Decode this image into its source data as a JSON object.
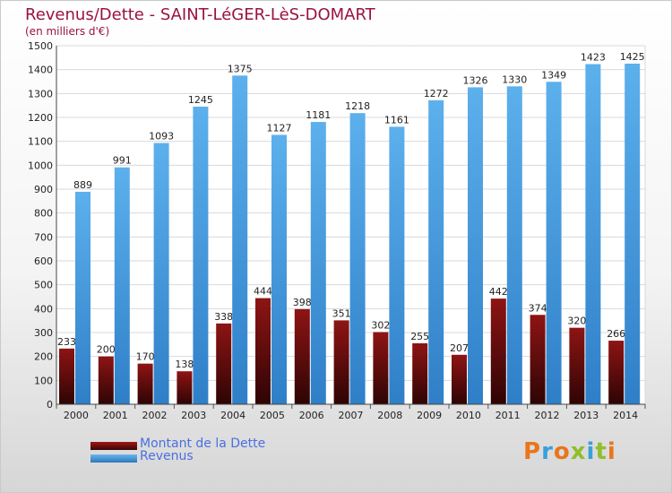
{
  "header": {
    "title": "Revenus/Dette - SAINT-LéGER-LèS-DOMART",
    "subtitle": "(en milliers d'€)"
  },
  "chart_data": {
    "type": "bar",
    "categories": [
      "2000",
      "2001",
      "2002",
      "2003",
      "2004",
      "2005",
      "2006",
      "2007",
      "2008",
      "2009",
      "2010",
      "2011",
      "2012",
      "2013",
      "2014"
    ],
    "series": [
      {
        "name": "Montant de la Dette",
        "color": "#7a1010",
        "values": [
          233,
          200,
          170,
          138,
          338,
          444,
          398,
          351,
          302,
          255,
          207,
          442,
          374,
          320,
          266
        ]
      },
      {
        "name": "Revenus",
        "color": "#3f97dc",
        "values": [
          889,
          991,
          1093,
          1245,
          1375,
          1127,
          1181,
          1218,
          1161,
          1272,
          1326,
          1330,
          1349,
          1423,
          1425
        ]
      }
    ],
    "title": "Revenus/Dette - SAINT-LéGER-LèS-DOMART",
    "subtitle": "(en milliers d'€)",
    "ylim": [
      0,
      1500
    ],
    "yticks": [
      0,
      100,
      200,
      300,
      400,
      500,
      600,
      700,
      800,
      900,
      1000,
      1100,
      1200,
      1300,
      1400,
      1500
    ],
    "grid": true,
    "legend": "bottom-left"
  },
  "legend": {
    "items": [
      {
        "label": "Montant de la Dette",
        "color": "#7a1010"
      },
      {
        "label": "Revenus",
        "color": "#3f97dc"
      }
    ]
  },
  "logo": {
    "letters": [
      {
        "char": "P",
        "color": "#e8761e"
      },
      {
        "char": "r",
        "color": "#3ba0d8"
      },
      {
        "char": "o",
        "color": "#e8761e"
      },
      {
        "char": "x",
        "color": "#8fbf2a"
      },
      {
        "char": "i",
        "color": "#3ba0d8"
      },
      {
        "char": "t",
        "color": "#8fbf2a"
      },
      {
        "char": "i",
        "color": "#e8761e"
      }
    ]
  }
}
